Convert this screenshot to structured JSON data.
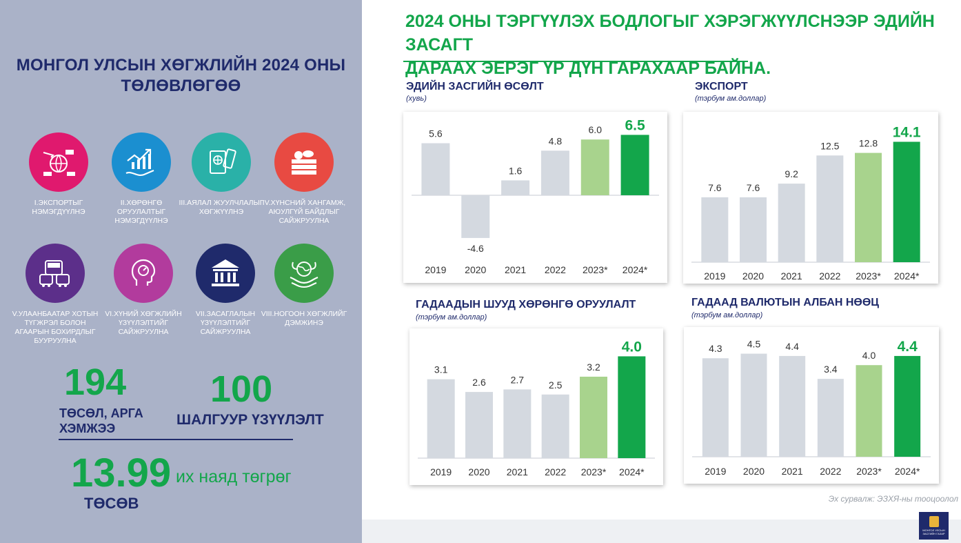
{
  "left": {
    "title": "МОНГОЛ УЛСЫН ХӨГЖЛИЙН 2024 ОНЫ ТӨЛӨВЛӨГӨӨ",
    "goals": [
      {
        "label": "I.ЭКСПОРТЫГ НЭМЭГДҮҮЛНЭ",
        "color": "#e0196e",
        "icon": "export-icon"
      },
      {
        "label": "II.ХӨРӨНГӨ ОРУУЛАЛТЫГ НЭМЭГДҮҮЛНЭ",
        "color": "#1b8fd0",
        "icon": "investment-growth-icon"
      },
      {
        "label": "III.АЯЛАЛ ЖУУЛЧЛАЛЫГ ХӨГЖҮҮЛНЭ",
        "color": "#2ab1a8",
        "icon": "passport-icon"
      },
      {
        "label": "IV.ХҮНСНИЙ ХАНГАМЖ, АЮУЛГҮЙ БАЙДЛЫГ САЙЖРУУЛНА",
        "color": "#e84a42",
        "icon": "food-basket-icon"
      },
      {
        "label": "V.УЛААНБААТАР ХОТЫН ТҮГЖРЭЛ БОЛОН АГААРЫН БОХИРДЛЫГ БУУРУУЛНА",
        "color": "#5c2f8a",
        "icon": "traffic-icon"
      },
      {
        "label": "VI.ХҮНИЙ ХӨГЖЛИЙН ҮЗҮҮЛЭЛТИЙГ САЙЖРУУЛНА",
        "color": "#b23b9d",
        "icon": "human-head-icon"
      },
      {
        "label": "VII.ЗАСАГЛАЛЫН ҮЗҮҮЛЭЛТИЙГ САЙЖРУУЛНА",
        "color": "#1f2a6b",
        "icon": "government-building-icon"
      },
      {
        "label": "VIII.НОГООН ХӨГЖЛИЙГ ДЭМЖИНЭ",
        "color": "#3a9d48",
        "icon": "green-earth-icon"
      }
    ],
    "stats": {
      "projects_value": "194",
      "projects_label": "ТӨСӨЛ, АРГА ХЭМЖЭЭ",
      "indicators_value": "100",
      "indicators_label": "ШАЛГУУР ҮЗҮҮЛЭЛТ",
      "budget_value": "13.99",
      "budget_unit": "их наяд төгрөг",
      "budget_label": "ТӨСӨВ"
    }
  },
  "headline": {
    "line1": "2024 ОНЫ ТЭРГҮҮЛЭХ БОДЛОГЫГ ХЭРЭГЖҮҮЛСНЭЭР ЭДИЙН ЗАСАГТ",
    "line2": "ДАРААХ ЭЕРЭГ ҮР ДҮН ГАРАХААР БАЙНА."
  },
  "source": "Эх сурвалж: ЭЗХЯ-ны тооцоолол",
  "logo_text": "МОНГОЛ УЛСЫН ЗАСГИЙН ГАЗАР",
  "colors": {
    "base": "#d4d9e0",
    "light_green": "#a8d38d",
    "green": "#13a64b",
    "navy": "#1f2a6b"
  },
  "chart_data": [
    {
      "type": "bar",
      "title": "ЭДИЙН ЗАСГИЙН ӨСӨЛТ",
      "unit": "(хувь)",
      "categories": [
        "2019",
        "2020",
        "2021",
        "2022",
        "2023*",
        "2024*"
      ],
      "values": [
        5.6,
        -4.6,
        1.6,
        4.8,
        6.0,
        6.5
      ],
      "value_labels": [
        "5.6",
        "-4.6",
        "1.6",
        "4.8",
        "6.0",
        "6.5"
      ],
      "ylim": [
        -5.5,
        7.5
      ],
      "bar_colors": [
        "#d4d9e0",
        "#d4d9e0",
        "#d4d9e0",
        "#d4d9e0",
        "#a8d38d",
        "#13a64b"
      ]
    },
    {
      "type": "bar",
      "title": "ЭКСПОРТ",
      "unit": "(тэрбум ам.доллар)",
      "categories": [
        "2019",
        "2020",
        "2021",
        "2022",
        "2023*",
        "2024*"
      ],
      "values": [
        7.6,
        7.6,
        9.2,
        12.5,
        12.8,
        14.1
      ],
      "value_labels": [
        "7.6",
        "7.6",
        "9.2",
        "12.5",
        "12.8",
        "14.1"
      ],
      "ylim": [
        0,
        16
      ],
      "bar_colors": [
        "#d4d9e0",
        "#d4d9e0",
        "#d4d9e0",
        "#d4d9e0",
        "#a8d38d",
        "#13a64b"
      ]
    },
    {
      "type": "bar",
      "title": "ГАДААДЫН ШУУД ХӨРӨНГӨ ОРУУЛАЛТ",
      "unit": "(тэрбум ам.доллар)",
      "categories": [
        "2019",
        "2020",
        "2021",
        "2022",
        "2023*",
        "2024*"
      ],
      "values": [
        3.1,
        2.6,
        2.7,
        2.5,
        3.2,
        4.0
      ],
      "value_labels": [
        "3.1",
        "2.6",
        "2.7",
        "2.5",
        "3.2",
        "4.0"
      ],
      "ylim": [
        0,
        4.5
      ],
      "bar_colors": [
        "#d4d9e0",
        "#d4d9e0",
        "#d4d9e0",
        "#d4d9e0",
        "#a8d38d",
        "#13a64b"
      ]
    },
    {
      "type": "bar",
      "title": "ГАДААД ВАЛЮТЫН АЛБАН НӨӨЦ",
      "unit": "(тэрбум ам.доллар)",
      "categories": [
        "2019",
        "2020",
        "2021",
        "2022",
        "2023*",
        "2024*"
      ],
      "values": [
        4.3,
        4.5,
        4.4,
        3.4,
        4.0,
        4.4
      ],
      "value_labels": [
        "4.3",
        "4.5",
        "4.4",
        "3.4",
        "4.0",
        "4.4"
      ],
      "ylim": [
        0,
        5.0
      ],
      "bar_colors": [
        "#d4d9e0",
        "#d4d9e0",
        "#d4d9e0",
        "#d4d9e0",
        "#a8d38d",
        "#13a64b"
      ]
    }
  ]
}
